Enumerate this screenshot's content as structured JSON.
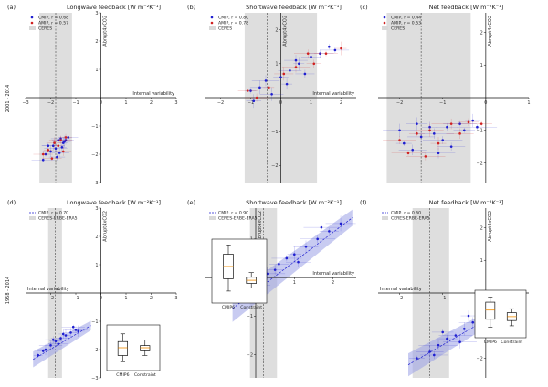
{
  "row_labels": [
    "2001 - 2014",
    "1958 - 2014"
  ],
  "chart_data": [
    {
      "type": "scatter",
      "label": "(a)",
      "title": "Longwave feedback [W m⁻²K⁻¹]",
      "xlabel": "Internal variability",
      "ylabel": "Abrupt4xCO2",
      "xlim": [
        -3.0,
        3.0
      ],
      "ylim": [
        -3.0,
        3.0
      ],
      "xticks": [
        -3,
        -2,
        -1,
        0,
        1,
        2,
        3
      ],
      "yticks": [
        -3,
        -2,
        -1,
        1,
        2,
        3
      ],
      "band": [
        -2.45,
        -1.15
      ],
      "vline": -1.8,
      "legend": [
        {
          "text": "CMIP, r = 0.68",
          "kind": "dot",
          "color": "#1f1fd0"
        },
        {
          "text": "AMIP, r = 0.57",
          "kind": "dot",
          "color": "#d02020"
        },
        {
          "text": "CERES",
          "kind": "patch",
          "color": "#d9d9d9"
        }
      ],
      "series": [
        {
          "name": "CMIP",
          "color": "#1f1fd0",
          "points": [
            [
              -2.2,
              -2.0
            ],
            [
              -2.0,
              -1.9
            ],
            [
              -1.9,
              -1.7
            ],
            [
              -1.7,
              -1.5
            ],
            [
              -1.6,
              -1.45
            ],
            [
              -1.5,
              -1.6
            ],
            [
              -1.4,
              -1.5
            ],
            [
              -1.8,
              -1.8
            ],
            [
              -2.1,
              -1.7
            ],
            [
              -1.3,
              -1.4
            ],
            [
              -1.55,
              -1.75
            ],
            [
              -1.75,
              -2.1
            ],
            [
              -2.3,
              -2.2
            ],
            [
              -1.45,
              -1.55
            ],
            [
              -1.65,
              -1.95
            ]
          ]
        },
        {
          "name": "AMIP",
          "color": "#d02020",
          "points": [
            [
              -2.3,
              -2.0
            ],
            [
              -2.1,
              -1.85
            ],
            [
              -1.85,
              -1.6
            ],
            [
              -1.6,
              -1.5
            ],
            [
              -1.4,
              -1.4
            ],
            [
              -1.95,
              -2.15
            ],
            [
              -1.7,
              -1.7
            ],
            [
              -1.5,
              -1.9
            ]
          ]
        }
      ]
    },
    {
      "type": "scatter",
      "label": "(b)",
      "title": "Shortwave feedback [W m⁻²K⁻¹]",
      "xlabel": "Internal variability",
      "ylabel": "Abrupt4xCO2",
      "xlim": [
        -2.5,
        2.5
      ],
      "ylim": [
        -2.5,
        2.5
      ],
      "xticks": [
        -2,
        -1,
        0,
        1,
        2
      ],
      "yticks": [
        -2,
        -1,
        1,
        2
      ],
      "band": [
        -1.2,
        1.2
      ],
      "vline": -0.45,
      "legend": [
        {
          "text": "CMIP, r = 0.80",
          "kind": "dot",
          "color": "#1f1fd0"
        },
        {
          "text": "AMIP, r = 0.78",
          "kind": "dot",
          "color": "#d02020"
        },
        {
          "text": "CERES",
          "kind": "patch",
          "color": "#d9d9d9"
        }
      ],
      "series": [
        {
          "name": "CMIP",
          "color": "#1f1fd0",
          "points": [
            [
              -1.0,
              0.2
            ],
            [
              -0.7,
              0.3
            ],
            [
              -0.5,
              0.5
            ],
            [
              0.0,
              0.6
            ],
            [
              0.3,
              0.8
            ],
            [
              0.6,
              1.0
            ],
            [
              1.0,
              1.2
            ],
            [
              1.3,
              1.3
            ],
            [
              1.6,
              1.5
            ],
            [
              -0.3,
              0.1
            ],
            [
              0.2,
              0.4
            ],
            [
              0.8,
              0.7
            ],
            [
              1.8,
              1.4
            ],
            [
              -0.9,
              -0.1
            ],
            [
              0.5,
              1.1
            ]
          ]
        },
        {
          "name": "AMIP",
          "color": "#d02020",
          "points": [
            [
              -0.8,
              0.0
            ],
            [
              -0.4,
              0.3
            ],
            [
              0.1,
              0.7
            ],
            [
              0.5,
              0.9
            ],
            [
              1.1,
              1.0
            ],
            [
              1.5,
              1.3
            ],
            [
              2.0,
              1.45
            ],
            [
              -1.1,
              0.2
            ],
            [
              0.9,
              1.3
            ]
          ]
        }
      ]
    },
    {
      "type": "scatter",
      "label": "(c)",
      "title": "Net feedback [W m⁻²K⁻¹]",
      "xlabel": "",
      "ylabel": "Abrupt4xCO2",
      "xlim": [
        -2.5,
        1.0
      ],
      "ylim": [
        -2.6,
        2.6
      ],
      "xticks": [
        -2,
        -1,
        0,
        1
      ],
      "yticks": [
        -2,
        -1,
        1,
        2
      ],
      "band": [
        -2.3,
        -0.35
      ],
      "vline": -1.5,
      "legend": [
        {
          "text": "CMIP, r = 0.44",
          "kind": "dot",
          "color": "#1f1fd0"
        },
        {
          "text": "AMIP, r = 0.53",
          "kind": "dot",
          "color": "#d02020"
        },
        {
          "text": "CERES",
          "kind": "patch",
          "color": "#d9d9d9"
        }
      ],
      "series": [
        {
          "name": "CMIP",
          "color": "#1f1fd0",
          "points": [
            [
              -1.9,
              -1.4
            ],
            [
              -1.5,
              -1.2
            ],
            [
              -1.2,
              -1.1
            ],
            [
              -0.9,
              -0.9
            ],
            [
              -0.6,
              -0.8
            ],
            [
              -0.3,
              -0.7
            ],
            [
              -1.7,
              -1.6
            ],
            [
              -1.0,
              -1.3
            ],
            [
              -0.5,
              -1.0
            ],
            [
              -2.0,
              -1.0
            ],
            [
              -1.3,
              -0.9
            ],
            [
              -0.8,
              -1.5
            ],
            [
              -0.2,
              -0.9
            ],
            [
              -1.6,
              -0.8
            ],
            [
              -1.1,
              -1.7
            ]
          ]
        },
        {
          "name": "AMIP",
          "color": "#d02020",
          "points": [
            [
              -2.0,
              -1.3
            ],
            [
              -1.6,
              -1.1
            ],
            [
              -1.3,
              -1.0
            ],
            [
              -0.8,
              -0.8
            ],
            [
              -0.4,
              -0.75
            ],
            [
              -1.8,
              -1.7
            ],
            [
              -1.1,
              -1.4
            ],
            [
              -0.6,
              -1.1
            ],
            [
              -1.4,
              -1.8
            ],
            [
              -0.1,
              -0.8
            ]
          ]
        }
      ]
    },
    {
      "type": "scatter",
      "label": "(d)",
      "title": "Longwave feedback [W m⁻²K⁻¹]",
      "xlabel": "Internal variability",
      "ylabel": "Abrupt4xCO2",
      "xlim": [
        -3.0,
        3.0
      ],
      "ylim": [
        -3.0,
        3.0
      ],
      "xticks": [
        -2,
        -1,
        0,
        1,
        2,
        3
      ],
      "yticks": [
        -3,
        -2,
        -1,
        1,
        2,
        3
      ],
      "band": [
        -2.1,
        -1.55
      ],
      "vline": -1.82,
      "legend": [
        {
          "text": "CMIP, r = 0.70",
          "kind": "line",
          "color": "#1f1fd0"
        },
        {
          "text": "CERES-ERBE-ERA5",
          "kind": "patch",
          "color": "#d9d9d9"
        }
      ],
      "fit": {
        "x": [
          -2.7,
          -0.4
        ],
        "y": [
          -2.35,
          -1.15
        ],
        "width": 0.28
      },
      "series": [
        {
          "name": "CMIP",
          "color": "#1f1fd0",
          "points": [
            [
              -2.5,
              -2.2
            ],
            [
              -2.2,
              -2.0
            ],
            [
              -2.0,
              -1.85
            ],
            [
              -1.8,
              -1.7
            ],
            [
              -1.6,
              -1.6
            ],
            [
              -1.4,
              -1.5
            ],
            [
              -1.2,
              -1.4
            ],
            [
              -1.0,
              -1.3
            ],
            [
              -2.3,
              -2.05
            ],
            [
              -1.7,
              -1.8
            ],
            [
              -1.5,
              -1.45
            ],
            [
              -1.9,
              -1.65
            ],
            [
              -1.1,
              -1.2
            ],
            [
              -0.9,
              -1.35
            ]
          ]
        }
      ],
      "inset": {
        "labels": [
          "CMIP6",
          "Constraint"
        ],
        "ylim": [
          -2.4,
          -1.1
        ],
        "boxes": [
          {
            "whisker_low": -2.2,
            "q1": -2.0,
            "median": -1.75,
            "q3": -1.55,
            "whisker_high": -1.3
          },
          {
            "whisker_low": -2.0,
            "q1": -1.85,
            "median": -1.75,
            "q3": -1.68,
            "whisker_high": -1.5
          }
        ]
      }
    },
    {
      "type": "scatter",
      "label": "(e)",
      "title": "Shortwave feedback [W m⁻²K⁻¹]",
      "xlabel": "Internal variability",
      "ylabel": "Abrupt4xCO2",
      "xlim": [
        -1.3,
        2.6
      ],
      "ylim": [
        -2.6,
        1.8
      ],
      "xticks": [
        0,
        1,
        2
      ],
      "yticks": [
        -2,
        -1,
        1
      ],
      "band": [
        -0.15,
        0.55
      ],
      "vline": 0.2,
      "legend": [
        {
          "text": "CMIP, r = 0.90",
          "kind": "line",
          "color": "#1f1fd0"
        },
        {
          "text": "CERES-ERBE-ERA5",
          "kind": "patch",
          "color": "#d9d9d9"
        }
      ],
      "fit": {
        "x": [
          -0.6,
          2.5
        ],
        "y": [
          -0.8,
          1.55
        ],
        "width": 0.35
      },
      "series": [
        {
          "name": "CMIP",
          "color": "#1f1fd0",
          "points": [
            [
              -0.3,
              -0.3
            ],
            [
              0.0,
              -0.1
            ],
            [
              0.3,
              0.1
            ],
            [
              0.5,
              0.2
            ],
            [
              0.8,
              0.5
            ],
            [
              1.0,
              0.6
            ],
            [
              1.3,
              0.8
            ],
            [
              1.6,
              1.0
            ],
            [
              1.9,
              1.2
            ],
            [
              2.2,
              1.4
            ],
            [
              0.2,
              -0.2
            ],
            [
              1.1,
              0.4
            ],
            [
              1.7,
              1.3
            ],
            [
              0.6,
              0.35
            ]
          ]
        }
      ],
      "inset": {
        "labels": [
          "CMIP6",
          "Constraint"
        ],
        "ylim": [
          -0.5,
          1.4
        ],
        "boxes": [
          {
            "whisker_low": -0.2,
            "q1": 0.2,
            "median": 0.6,
            "q3": 1.0,
            "whisker_high": 1.3
          },
          {
            "whisker_low": -0.1,
            "q1": 0.05,
            "median": 0.15,
            "q3": 0.25,
            "whisker_high": 0.4
          }
        ]
      }
    },
    {
      "type": "scatter",
      "label": "(f)",
      "title": "Net feedback [W m⁻²K⁻¹]",
      "xlabel": "Internal variability",
      "ylabel": "Abrupt4xCO2",
      "xlim": [
        -2.5,
        1.0
      ],
      "ylim": [
        -2.6,
        2.6
      ],
      "xticks": [
        -2,
        -1,
        0
      ],
      "yticks": [
        -2,
        -1,
        1,
        2
      ],
      "band": [
        -1.7,
        -0.85
      ],
      "vline": -1.3,
      "legend": [
        {
          "text": "CMIP, r = 0.60",
          "kind": "line",
          "color": "#1f1fd0"
        },
        {
          "text": "CERES-ERBE-ERA5",
          "kind": "patch",
          "color": "#d9d9d9"
        }
      ],
      "fit": {
        "x": [
          -1.8,
          0.3
        ],
        "y": [
          -2.2,
          -0.6
        ],
        "width": 0.35
      },
      "series": [
        {
          "name": "CMIP",
          "color": "#1f1fd0",
          "points": [
            [
              -1.6,
              -2.0
            ],
            [
              -1.3,
              -1.8
            ],
            [
              -1.1,
              -1.6
            ],
            [
              -0.9,
              -1.4
            ],
            [
              -0.7,
              -1.3
            ],
            [
              -0.5,
              -1.1
            ],
            [
              -0.3,
              -0.9
            ],
            [
              -0.1,
              -0.8
            ],
            [
              -1.0,
              -1.2
            ],
            [
              -0.6,
              -1.5
            ],
            [
              -0.4,
              -0.7
            ],
            [
              -1.2,
              -1.9
            ]
          ]
        }
      ],
      "inset": {
        "labels": [
          "CMIP6",
          "Constraint"
        ],
        "ylim": [
          -1.9,
          -0.3
        ],
        "boxes": [
          {
            "whisker_low": -1.6,
            "q1": -1.3,
            "median": -0.95,
            "q3": -0.65,
            "whisker_high": -0.45
          },
          {
            "whisker_low": -1.55,
            "q1": -1.35,
            "median": -1.2,
            "q3": -1.05,
            "whisker_high": -0.9
          }
        ]
      }
    }
  ]
}
